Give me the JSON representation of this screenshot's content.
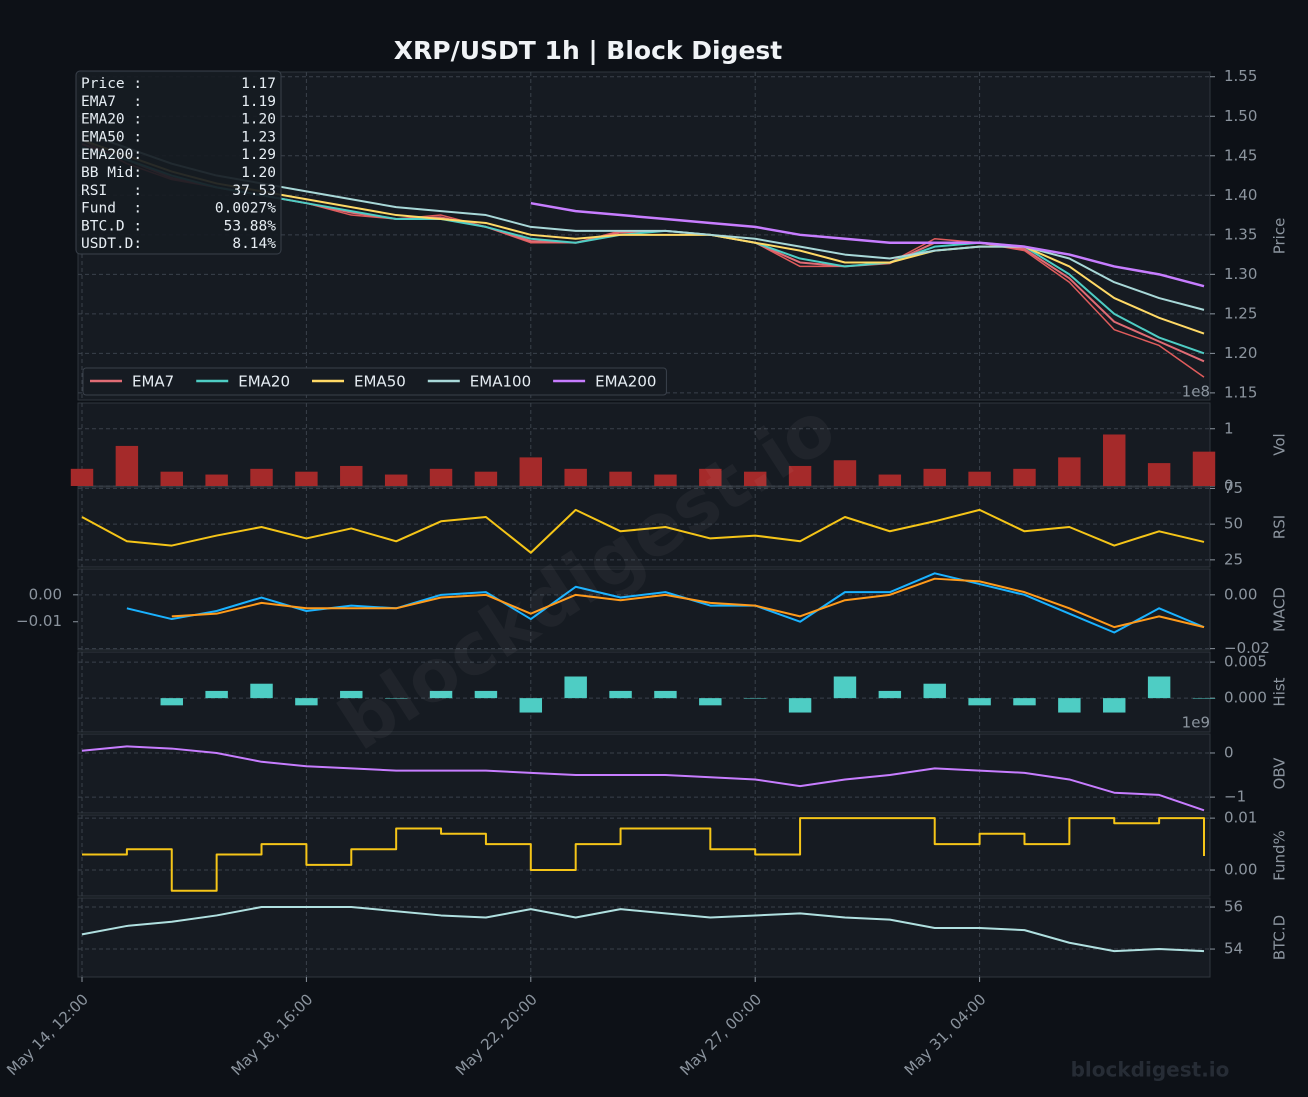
{
  "title": "XRP/USDT  1h  |  Block Digest",
  "watermark": "blockdigest.io",
  "footer": "blockdigest.io",
  "info_box": {
    "rows": [
      {
        "label": "Price :",
        "value": "1.17"
      },
      {
        "label": "EMA7  :",
        "value": "1.19"
      },
      {
        "label": "EMA20 :",
        "value": "1.20"
      },
      {
        "label": "EMA50 :",
        "value": "1.23"
      },
      {
        "label": "EMA200:",
        "value": "1.29"
      },
      {
        "label": "BB Mid:",
        "value": "1.20"
      },
      {
        "label": "RSI   :",
        "value": "37.53"
      },
      {
        "label": "Fund  :",
        "value": "0.0027%"
      },
      {
        "label": "BTC.D :",
        "value": "53.88%"
      },
      {
        "label": "USDT.D:",
        "value": "8.14%"
      }
    ]
  },
  "chart_data": [
    {
      "type": "line",
      "ylabel": "Price",
      "color": "#e05c5c",
      "legend": "lower left",
      "grid": true,
      "values": [
        1.47,
        1.44,
        1.42,
        1.41,
        1.4,
        1.39,
        1.375,
        1.37,
        1.375,
        1.36,
        1.34,
        1.34,
        1.355,
        1.355,
        1.35,
        1.34,
        1.31,
        1.31,
        1.315,
        1.345,
        1.34,
        1.33,
        1.29,
        1.23,
        1.21,
        1.17
      ],
      "series": [
        {
          "name": "EMA7",
          "color": "#e06c75",
          "values": [
            1.465,
            1.445,
            1.422,
            1.41,
            1.4,
            1.39,
            1.378,
            1.37,
            1.372,
            1.36,
            1.342,
            1.34,
            1.353,
            1.355,
            1.35,
            1.34,
            1.315,
            1.31,
            1.314,
            1.34,
            1.34,
            1.332,
            1.295,
            1.24,
            1.215,
            1.19
          ]
        },
        {
          "name": "EMA20",
          "color": "#4ecdc4",
          "values": [
            1.46,
            1.445,
            1.425,
            1.41,
            1.4,
            1.39,
            1.38,
            1.37,
            1.37,
            1.36,
            1.345,
            1.34,
            1.35,
            1.355,
            1.35,
            1.34,
            1.32,
            1.31,
            1.315,
            1.335,
            1.34,
            1.335,
            1.3,
            1.25,
            1.22,
            1.2
          ]
        },
        {
          "name": "EMA50",
          "color": "#ffd966",
          "values": [
            1.47,
            1.45,
            1.43,
            1.415,
            1.405,
            1.395,
            1.385,
            1.375,
            1.37,
            1.365,
            1.35,
            1.345,
            1.35,
            1.35,
            1.35,
            1.34,
            1.33,
            1.315,
            1.315,
            1.33,
            1.335,
            1.335,
            1.31,
            1.27,
            1.245,
            1.225
          ]
        },
        {
          "name": "EMA100",
          "color": "#a8d8d8",
          "values": [
            1.48,
            1.46,
            1.44,
            1.425,
            1.415,
            1.405,
            1.395,
            1.385,
            1.38,
            1.375,
            1.36,
            1.355,
            1.355,
            1.355,
            1.35,
            1.345,
            1.335,
            1.325,
            1.32,
            1.33,
            1.335,
            1.335,
            1.32,
            1.29,
            1.27,
            1.255
          ]
        },
        {
          "name": "EMA200",
          "color": "#c77dff",
          "values": [
            null,
            null,
            null,
            null,
            null,
            null,
            null,
            null,
            null,
            null,
            1.39,
            1.38,
            1.375,
            1.37,
            1.365,
            1.36,
            1.35,
            1.345,
            1.34,
            1.34,
            1.34,
            1.335,
            1.325,
            1.31,
            1.3,
            1.285
          ]
        }
      ],
      "ylim": [
        1.141,
        1.556
      ],
      "yticks": [
        {
          "value": 1.15,
          "label": "1.15"
        },
        {
          "value": 1.2,
          "label": "1.20"
        },
        {
          "value": 1.25,
          "label": "1.25"
        },
        {
          "value": 1.3,
          "label": "1.30"
        },
        {
          "value": 1.35,
          "label": "1.35"
        },
        {
          "value": 1.4,
          "label": "1.40"
        },
        {
          "value": 1.45,
          "label": "1.45"
        },
        {
          "value": 1.5,
          "label": "1.50"
        },
        {
          "value": 1.55,
          "label": "1.55"
        }
      ]
    },
    {
      "type": "bar",
      "ylabel": "Vol",
      "offset_text": "1e8",
      "color": "#a52a2a",
      "grid": true,
      "values": [
        0.3,
        0.7,
        0.25,
        0.2,
        0.3,
        0.25,
        0.35,
        0.2,
        0.3,
        0.25,
        0.5,
        0.3,
        0.25,
        0.2,
        0.3,
        0.25,
        0.35,
        0.45,
        0.2,
        0.3,
        0.25,
        0.3,
        0.5,
        0.9,
        0.4,
        0.6
      ],
      "ylim": [
        0,
        1.45
      ],
      "yticks": [
        0,
        1
      ]
    },
    {
      "type": "line",
      "ylabel": "RSI",
      "grid": true,
      "series": [
        {
          "name": "RSI",
          "color": "#f5c518",
          "values": [
            55,
            38,
            35,
            42,
            48,
            40,
            47,
            38,
            52,
            55,
            30,
            60,
            45,
            48,
            40,
            42,
            38,
            55,
            45,
            52,
            60,
            45,
            48,
            35,
            45,
            37.53
          ]
        }
      ],
      "ylim": [
        20,
        76
      ],
      "yticks": [
        25,
        50,
        75
      ]
    },
    {
      "type": "line",
      "ylabel": "MACD",
      "grid": true,
      "series": [
        {
          "name": "MACD",
          "color": "#1ab2ff",
          "values": [
            null,
            -0.005,
            -0.009,
            -0.006,
            -0.001,
            -0.006,
            -0.004,
            -0.005,
            0,
            0.001,
            -0.009,
            0.003,
            -0.001,
            0.001,
            -0.004,
            -0.004,
            -0.01,
            0.001,
            0.001,
            0.008,
            0.004,
            0,
            -0.007,
            -0.014,
            -0.005,
            -0.012
          ]
        },
        {
          "name": "Signal",
          "color": "#ff9a1a",
          "values": [
            null,
            null,
            -0.008,
            -0.007,
            -0.003,
            -0.005,
            -0.005,
            -0.005,
            -0.001,
            0,
            -0.007,
            0,
            -0.002,
            0,
            -0.003,
            -0.004,
            -0.008,
            -0.002,
            0,
            0.006,
            0.005,
            0.001,
            -0.005,
            -0.012,
            -0.008,
            -0.012
          ]
        }
      ],
      "ylim": [
        -0.0205,
        0.0096
      ],
      "yticks": [
        {
          "value": -0.02,
          "label": "−0.02"
        },
        {
          "value": 0,
          "label": "0.00"
        }
      ],
      "yticks_left": [
        {
          "value": -0.01,
          "label": "−0.01"
        },
        {
          "value": 0,
          "label": "0.00"
        }
      ]
    },
    {
      "type": "bar",
      "ylabel": "Hist",
      "color": "#4ecdc4",
      "grid": true,
      "values": [
        null,
        null,
        -0.001,
        0.001,
        0.002,
        -0.001,
        0.001,
        0,
        0.001,
        0.001,
        -0.002,
        0.003,
        0.001,
        0.001,
        -0.001,
        0,
        -0.002,
        0.003,
        0.001,
        0.002,
        -0.001,
        -0.001,
        -0.002,
        -0.002,
        0.003,
        0
      ],
      "ylim": [
        -0.0047,
        0.0064
      ],
      "yticks": [
        {
          "value": 0,
          "label": "0.000"
        },
        {
          "value": 0.005,
          "label": "0.005"
        }
      ]
    },
    {
      "type": "line",
      "ylabel": "OBV",
      "offset_text": "1e9",
      "grid": true,
      "series": [
        {
          "name": "OBV",
          "color": "#c77dff",
          "values": [
            0.05,
            0.15,
            0.1,
            0,
            -0.2,
            -0.3,
            -0.35,
            -0.4,
            -0.4,
            -0.4,
            -0.45,
            -0.5,
            -0.5,
            -0.5,
            -0.55,
            -0.6,
            -0.75,
            -0.6,
            -0.5,
            -0.35,
            -0.4,
            -0.45,
            -0.6,
            -0.9,
            -0.95,
            -1.3
          ]
        }
      ],
      "ylim": [
        -1.36,
        0.43
      ],
      "yticks": [
        {
          "value": -1,
          "label": "−1"
        },
        0
      ]
    },
    {
      "type": "line",
      "ylabel": "Fund%",
      "drawstyle": "steps-post",
      "grid": true,
      "series": [
        {
          "name": "Fund%",
          "color": "#f5c518",
          "values": [
            0.003,
            0.004,
            -0.004,
            0.003,
            0.005,
            0.001,
            0.004,
            0.008,
            0.007,
            0.005,
            0,
            0.005,
            0.008,
            0.008,
            0.004,
            0.003,
            0.01,
            0.01,
            0.01,
            0.005,
            0.007,
            0.005,
            0.01,
            0.009,
            0.01,
            0.0027
          ]
        }
      ],
      "ylim": [
        -0.005,
        0.0106
      ],
      "yticks": [
        {
          "value": 0,
          "label": "0.00"
        },
        0.01
      ]
    },
    {
      "type": "line",
      "ylabel": "BTC.D",
      "grid": true,
      "series": [
        {
          "name": "BTC.D",
          "color": "#b0e0e0",
          "values": [
            54.7,
            55.1,
            55.3,
            55.6,
            56,
            56,
            56,
            55.8,
            55.6,
            55.5,
            55.9,
            55.5,
            55.9,
            55.7,
            55.5,
            55.6,
            55.7,
            55.5,
            55.4,
            55,
            55,
            54.9,
            54.3,
            53.9,
            54,
            53.9
          ]
        }
      ],
      "ylim": [
        52.67,
        56.43
      ],
      "yticks": [
        54,
        56
      ],
      "x": [
        "May 14, 12:00",
        null,
        null,
        null,
        null,
        "May 18, 16:00",
        null,
        null,
        null,
        null,
        "May 22, 20:00",
        null,
        null,
        null,
        null,
        "May 27, 00:00",
        null,
        null,
        null,
        null,
        "May 31, 04:00",
        null,
        null,
        null,
        null,
        null
      ]
    }
  ]
}
